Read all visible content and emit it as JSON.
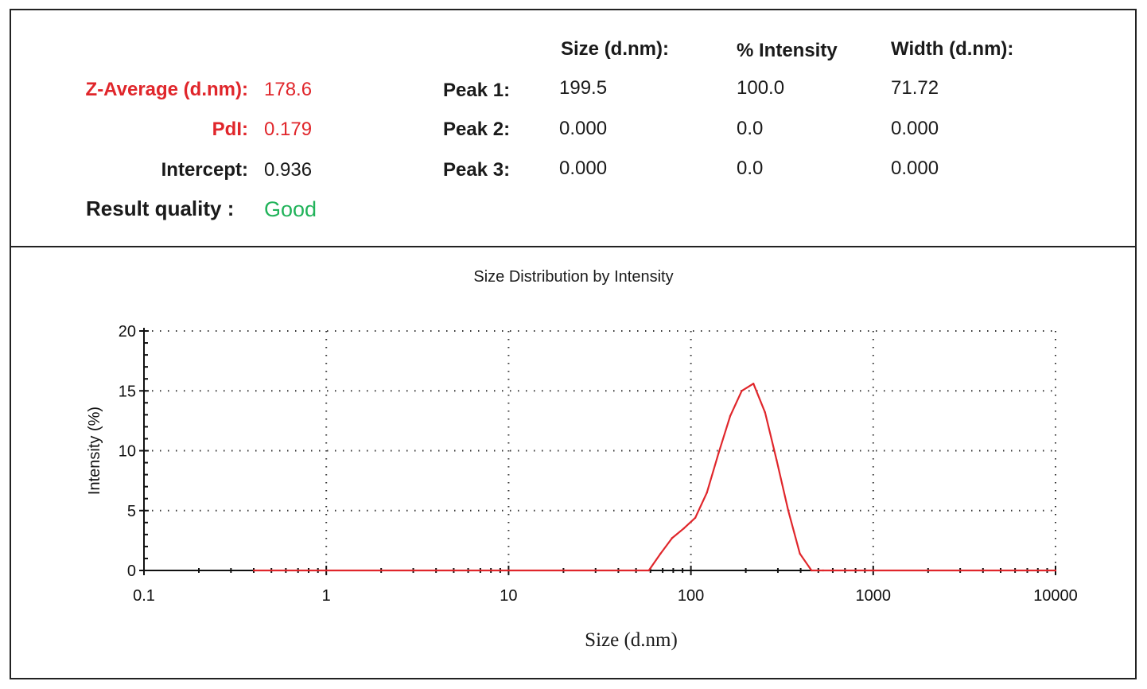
{
  "summary": {
    "z_average": {
      "label": "Z-Average (d.nm):",
      "value": "178.6"
    },
    "pdi": {
      "label": "PdI:",
      "value": "0.179"
    },
    "intercept": {
      "label": "Intercept:",
      "value": "0.936"
    },
    "result_quality": {
      "label": "Result quality :",
      "value": "Good"
    }
  },
  "peaks": {
    "headers": {
      "size": "Size (d.nm):",
      "intensity": "% Intensity",
      "width": "Width (d.nm):"
    },
    "rows": [
      {
        "label": "Peak 1:",
        "size": "199.5",
        "intensity": "100.0",
        "width": "71.72"
      },
      {
        "label": "Peak 2:",
        "size": "0.000",
        "intensity": "0.0",
        "width": "0.000"
      },
      {
        "label": "Peak 3:",
        "size": "0.000",
        "intensity": "0.0",
        "width": "0.000"
      }
    ]
  },
  "colors": {
    "red": "#e0262b",
    "green": "#21b35a",
    "curve": "#e0262b"
  },
  "chart_data": {
    "type": "line",
    "title": "Size Distribution by Intensity",
    "xlabel": "Size (d.nm)",
    "ylabel": "Intensity (%)",
    "x_scale": "log",
    "xlim": [
      0.1,
      10000
    ],
    "ylim": [
      0,
      20
    ],
    "x_ticks": [
      0.1,
      1,
      10,
      100,
      1000,
      10000
    ],
    "x_tick_labels": [
      "0.1",
      "1",
      "10",
      "100",
      "1000",
      "10000"
    ],
    "y_ticks": [
      0,
      5,
      10,
      15,
      20
    ],
    "y_tick_labels": [
      "0",
      "5",
      "10",
      "15",
      "20"
    ],
    "grid": "dotted",
    "series": [
      {
        "x": [
          0.4,
          1,
          10,
          58.8,
          68.1,
          78.8,
          91.3,
          105.7,
          122.4,
          141.8,
          164.2,
          190.1,
          220.2,
          255.0,
          295.3,
          342.0,
          396.1,
          458.7,
          531.2,
          1000,
          10000
        ],
        "y": [
          0,
          0,
          0,
          0,
          1.4,
          2.7,
          3.5,
          4.4,
          6.5,
          9.8,
          12.9,
          15.0,
          15.6,
          13.2,
          9.2,
          5.0,
          1.4,
          0,
          0,
          0,
          0
        ]
      }
    ]
  }
}
